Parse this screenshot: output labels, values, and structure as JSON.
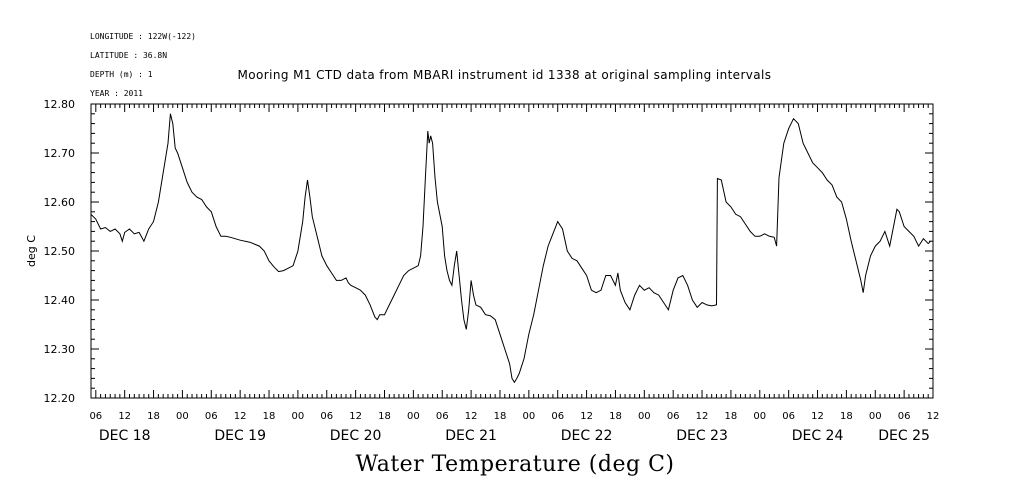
{
  "header": {
    "longitude": "LONGITUDE : 122W(-122)",
    "latitude": "LATITUDE : 36.8N",
    "depth": "DEPTH (m) : 1",
    "year": "YEAR : 2011",
    "title": "Mooring M1 CTD data from MBARI instrument id 1338 at original sampling intervals"
  },
  "chart_data": {
    "type": "line",
    "title": "Mooring M1 CTD data from MBARI instrument id 1338 at original sampling intervals",
    "xlabel": "Water Temperature (deg C)",
    "ylabel": "deg C",
    "x_range_hours": [
      5,
      180
    ],
    "ylim": [
      12.2,
      12.8
    ],
    "y_ticks": [
      "12.20",
      "12.30",
      "12.40",
      "12.50",
      "12.60",
      "12.70",
      "12.80"
    ],
    "hour_tick_labels": [
      "06",
      "12",
      "18",
      "00"
    ],
    "day_labels": [
      {
        "label": "DEC 18",
        "hour": 12
      },
      {
        "label": "DEC 19",
        "hour": 36
      },
      {
        "label": "DEC 20",
        "hour": 60
      },
      {
        "label": "DEC 21",
        "hour": 84
      },
      {
        "label": "DEC 22",
        "hour": 108
      },
      {
        "label": "DEC 23",
        "hour": 132
      },
      {
        "label": "DEC 24",
        "hour": 156
      },
      {
        "label": "DEC 25",
        "hour": 174
      }
    ],
    "grid": false,
    "series": [
      {
        "points": [
          [
            5.0,
            12.575
          ],
          [
            6.0,
            12.565
          ],
          [
            7.0,
            12.545
          ],
          [
            8.0,
            12.548
          ],
          [
            9.0,
            12.54
          ],
          [
            10.0,
            12.545
          ],
          [
            11.0,
            12.535
          ],
          [
            11.5,
            12.52
          ],
          [
            12.0,
            12.538
          ],
          [
            13.0,
            12.545
          ],
          [
            14.0,
            12.535
          ],
          [
            15.0,
            12.538
          ],
          [
            16.0,
            12.52
          ],
          [
            17.0,
            12.545
          ],
          [
            18.0,
            12.56
          ],
          [
            19.0,
            12.6
          ],
          [
            20.0,
            12.66
          ],
          [
            21.0,
            12.72
          ],
          [
            21.5,
            12.78
          ],
          [
            22.0,
            12.76
          ],
          [
            22.5,
            12.71
          ],
          [
            23.0,
            12.7
          ],
          [
            24.0,
            12.67
          ],
          [
            25.0,
            12.64
          ],
          [
            26.0,
            12.62
          ],
          [
            27.0,
            12.61
          ],
          [
            28.0,
            12.605
          ],
          [
            29.0,
            12.59
          ],
          [
            30.0,
            12.58
          ],
          [
            31.0,
            12.55
          ],
          [
            32.0,
            12.53
          ],
          [
            33.0,
            12.53
          ],
          [
            34.0,
            12.528
          ],
          [
            36.0,
            12.522
          ],
          [
            38.0,
            12.518
          ],
          [
            40.0,
            12.51
          ],
          [
            41.0,
            12.5
          ],
          [
            42.0,
            12.48
          ],
          [
            43.0,
            12.468
          ],
          [
            44.0,
            12.458
          ],
          [
            45.0,
            12.46
          ],
          [
            46.0,
            12.465
          ],
          [
            47.0,
            12.47
          ],
          [
            48.0,
            12.5
          ],
          [
            49.0,
            12.56
          ],
          [
            49.5,
            12.61
          ],
          [
            50.0,
            12.645
          ],
          [
            50.5,
            12.61
          ],
          [
            51.0,
            12.57
          ],
          [
            52.0,
            12.53
          ],
          [
            53.0,
            12.49
          ],
          [
            54.0,
            12.47
          ],
          [
            55.0,
            12.455
          ],
          [
            56.0,
            12.44
          ],
          [
            57.0,
            12.44
          ],
          [
            58.0,
            12.445
          ],
          [
            58.5,
            12.435
          ],
          [
            59.0,
            12.43
          ],
          [
            60.0,
            12.425
          ],
          [
            61.0,
            12.42
          ],
          [
            62.0,
            12.41
          ],
          [
            63.0,
            12.39
          ],
          [
            64.0,
            12.365
          ],
          [
            64.5,
            12.36
          ],
          [
            65.0,
            12.37
          ],
          [
            66.0,
            12.37
          ],
          [
            67.0,
            12.39
          ],
          [
            68.0,
            12.41
          ],
          [
            69.0,
            12.43
          ],
          [
            70.0,
            12.45
          ],
          [
            71.0,
            12.46
          ],
          [
            72.0,
            12.465
          ],
          [
            73.0,
            12.47
          ],
          [
            73.5,
            12.49
          ],
          [
            74.0,
            12.55
          ],
          [
            74.5,
            12.65
          ],
          [
            75.0,
            12.745
          ],
          [
            75.3,
            12.72
          ],
          [
            75.6,
            12.735
          ],
          [
            76.0,
            12.72
          ],
          [
            76.5,
            12.65
          ],
          [
            77.0,
            12.6
          ],
          [
            78.0,
            12.55
          ],
          [
            78.5,
            12.49
          ],
          [
            79.0,
            12.46
          ],
          [
            79.5,
            12.44
          ],
          [
            80.0,
            12.43
          ],
          [
            80.5,
            12.47
          ],
          [
            81.0,
            12.5
          ],
          [
            81.3,
            12.47
          ],
          [
            81.6,
            12.44
          ],
          [
            82.0,
            12.4
          ],
          [
            82.5,
            12.36
          ],
          [
            83.0,
            12.34
          ],
          [
            83.5,
            12.38
          ],
          [
            84.0,
            12.44
          ],
          [
            84.5,
            12.41
          ],
          [
            85.0,
            12.39
          ],
          [
            86.0,
            12.385
          ],
          [
            87.0,
            12.37
          ],
          [
            88.0,
            12.368
          ],
          [
            89.0,
            12.36
          ],
          [
            90.0,
            12.33
          ],
          [
            91.0,
            12.3
          ],
          [
            92.0,
            12.27
          ],
          [
            92.5,
            12.24
          ],
          [
            93.0,
            12.232
          ],
          [
            93.5,
            12.24
          ],
          [
            94.0,
            12.25
          ],
          [
            95.0,
            12.28
          ],
          [
            96.0,
            12.33
          ],
          [
            97.0,
            12.37
          ],
          [
            98.0,
            12.42
          ],
          [
            99.0,
            12.47
          ],
          [
            100.0,
            12.51
          ],
          [
            101.0,
            12.535
          ],
          [
            102.0,
            12.56
          ],
          [
            103.0,
            12.545
          ],
          [
            104.0,
            12.5
          ],
          [
            105.0,
            12.485
          ],
          [
            106.0,
            12.48
          ],
          [
            107.0,
            12.465
          ],
          [
            108.0,
            12.45
          ],
          [
            109.0,
            12.42
          ],
          [
            110.0,
            12.415
          ],
          [
            111.0,
            12.42
          ],
          [
            112.0,
            12.45
          ],
          [
            113.0,
            12.45
          ],
          [
            114.0,
            12.43
          ],
          [
            114.5,
            12.455
          ],
          [
            115.0,
            12.42
          ],
          [
            116.0,
            12.395
          ],
          [
            117.0,
            12.38
          ],
          [
            118.0,
            12.41
          ],
          [
            119.0,
            12.43
          ],
          [
            120.0,
            12.42
          ],
          [
            121.0,
            12.425
          ],
          [
            122.0,
            12.415
          ],
          [
            123.0,
            12.41
          ],
          [
            124.0,
            12.395
          ],
          [
            125.0,
            12.38
          ],
          [
            126.0,
            12.42
          ],
          [
            127.0,
            12.445
          ],
          [
            128.0,
            12.45
          ],
          [
            129.0,
            12.43
          ],
          [
            130.0,
            12.4
          ],
          [
            131.0,
            12.385
          ],
          [
            132.0,
            12.395
          ],
          [
            133.0,
            12.39
          ],
          [
            134.0,
            12.388
          ],
          [
            135.0,
            12.39
          ],
          [
            135.2,
            12.648
          ],
          [
            136.0,
            12.645
          ],
          [
            137.0,
            12.6
          ],
          [
            138.0,
            12.59
          ],
          [
            139.0,
            12.575
          ],
          [
            140.0,
            12.57
          ],
          [
            141.0,
            12.555
          ],
          [
            142.0,
            12.54
          ],
          [
            143.0,
            12.53
          ],
          [
            144.0,
            12.53
          ],
          [
            145.0,
            12.535
          ],
          [
            146.0,
            12.53
          ],
          [
            147.0,
            12.528
          ],
          [
            147.5,
            12.51
          ],
          [
            148.0,
            12.65
          ],
          [
            149.0,
            12.72
          ],
          [
            150.0,
            12.75
          ],
          [
            151.0,
            12.77
          ],
          [
            152.0,
            12.76
          ],
          [
            153.0,
            12.72
          ],
          [
            154.0,
            12.7
          ],
          [
            155.0,
            12.68
          ],
          [
            156.0,
            12.67
          ],
          [
            157.0,
            12.66
          ],
          [
            158.0,
            12.645
          ],
          [
            159.0,
            12.635
          ],
          [
            160.0,
            12.61
          ],
          [
            161.0,
            12.6
          ],
          [
            162.0,
            12.565
          ],
          [
            163.0,
            12.52
          ],
          [
            164.0,
            12.48
          ],
          [
            165.0,
            12.44
          ],
          [
            165.5,
            12.415
          ],
          [
            166.0,
            12.45
          ],
          [
            167.0,
            12.49
          ],
          [
            168.0,
            12.51
          ],
          [
            169.0,
            12.52
          ],
          [
            170.0,
            12.54
          ],
          [
            171.0,
            12.51
          ],
          [
            172.0,
            12.56
          ],
          [
            172.5,
            12.585
          ],
          [
            173.0,
            12.58
          ],
          [
            174.0,
            12.55
          ],
          [
            175.0,
            12.54
          ],
          [
            176.0,
            12.53
          ],
          [
            176.5,
            12.52
          ],
          [
            177.0,
            12.51
          ],
          [
            178.0,
            12.525
          ],
          [
            179.0,
            12.515
          ],
          [
            179.5,
            12.52
          ]
        ]
      }
    ]
  }
}
